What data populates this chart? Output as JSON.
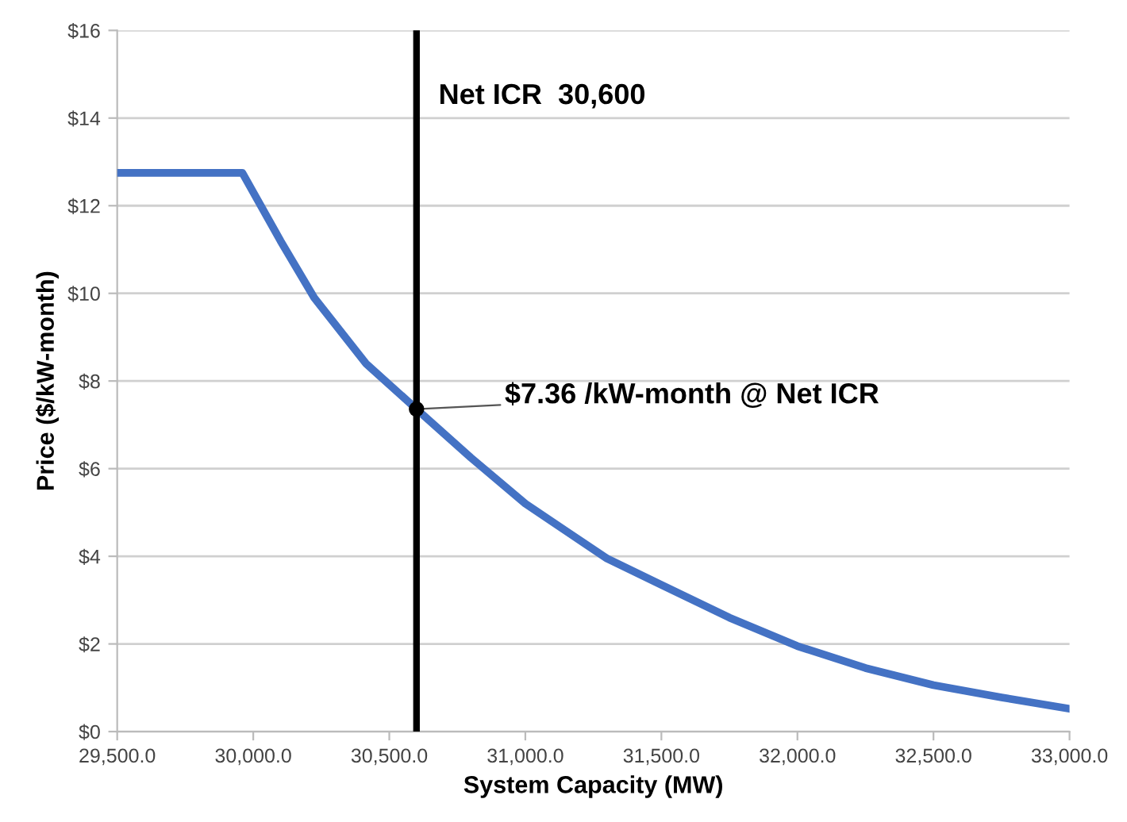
{
  "chart_data": {
    "type": "line",
    "xlabel": "System Capacity (MW)",
    "ylabel": "Price ($/kW-month)",
    "series": [
      {
        "color": "#4472c4",
        "x": [
          29500,
          29960,
          30100,
          30224,
          30414,
          30600,
          30800,
          31000,
          31144,
          31300,
          31500,
          31750,
          32000,
          32250,
          32500,
          32750,
          33000
        ],
        "values": [
          12.75,
          12.75,
          11.2,
          9.9,
          8.4,
          7.36,
          6.25,
          5.2,
          4.6,
          3.95,
          3.35,
          2.6,
          1.95,
          1.45,
          1.06,
          0.78,
          0.52
        ]
      }
    ],
    "xlim": [
      29500,
      33000
    ],
    "xticks": [
      {
        "value": 29500,
        "label": "29,500.0"
      },
      {
        "value": 30000,
        "label": "30,000.0"
      },
      {
        "value": 30500,
        "label": "30,500.0"
      },
      {
        "value": 31000,
        "label": "31,000.0"
      },
      {
        "value": 31500,
        "label": "31,500.0"
      },
      {
        "value": 32000,
        "label": "32,000.0"
      },
      {
        "value": 32500,
        "label": "32,500.0"
      },
      {
        "value": 33000,
        "label": "33,000.0"
      }
    ],
    "ylim": [
      0,
      16
    ],
    "yticks": [
      {
        "value": 0,
        "label": "$0"
      },
      {
        "value": 2,
        "label": "$2"
      },
      {
        "value": 4,
        "label": "$4"
      },
      {
        "value": 6,
        "label": "$6"
      },
      {
        "value": 8,
        "label": "$8"
      },
      {
        "value": 10,
        "label": "$10"
      },
      {
        "value": 12,
        "label": "$12"
      },
      {
        "value": 14,
        "label": "$14"
      },
      {
        "value": 16,
        "label": "$16"
      }
    ],
    "grid": "y",
    "marker": "none",
    "line_style": "solid",
    "ref_lines": [
      {
        "axis": "x",
        "value": 30600,
        "label": "Net ICR  30,600",
        "color": "#000000"
      }
    ],
    "annotations": [
      {
        "text": "$7.36 /kW-month @ Net ICR",
        "x": 30600,
        "y": 7.36
      }
    ]
  }
}
